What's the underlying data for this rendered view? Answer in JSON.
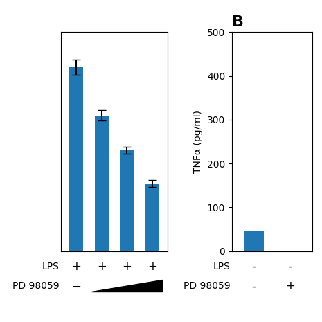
{
  "chart_data": [
    {
      "type": "bar",
      "categories": [
        null,
        null,
        null,
        null
      ],
      "values": [
        420,
        310,
        230,
        155
      ],
      "errors": [
        18,
        12,
        8,
        8
      ],
      "ylim": [
        0,
        500
      ],
      "yticks": [],
      "tick_labels": false,
      "label_rows": [
        {
          "name": "LPS",
          "labels": [
            "+",
            "+",
            "+",
            "+"
          ]
        },
        {
          "name": "PD 98059",
          "labels": [
            "−",
            null,
            null,
            null
          ],
          "ramp": true
        }
      ]
    },
    {
      "type": "bar",
      "title": "B",
      "categories": [
        null,
        null
      ],
      "values": [
        45,
        0
      ],
      "ylabel": "TNFα (pg/ml)",
      "ylim": [
        0,
        500
      ],
      "yticks": [
        0,
        100,
        200,
        300,
        400,
        500
      ],
      "tick_labels": "y",
      "label_rows": [
        {
          "name": "LPS",
          "labels": [
            "-",
            "-"
          ]
        },
        {
          "name": "PD 98059",
          "labels": [
            "-",
            "+"
          ]
        }
      ]
    }
  ]
}
